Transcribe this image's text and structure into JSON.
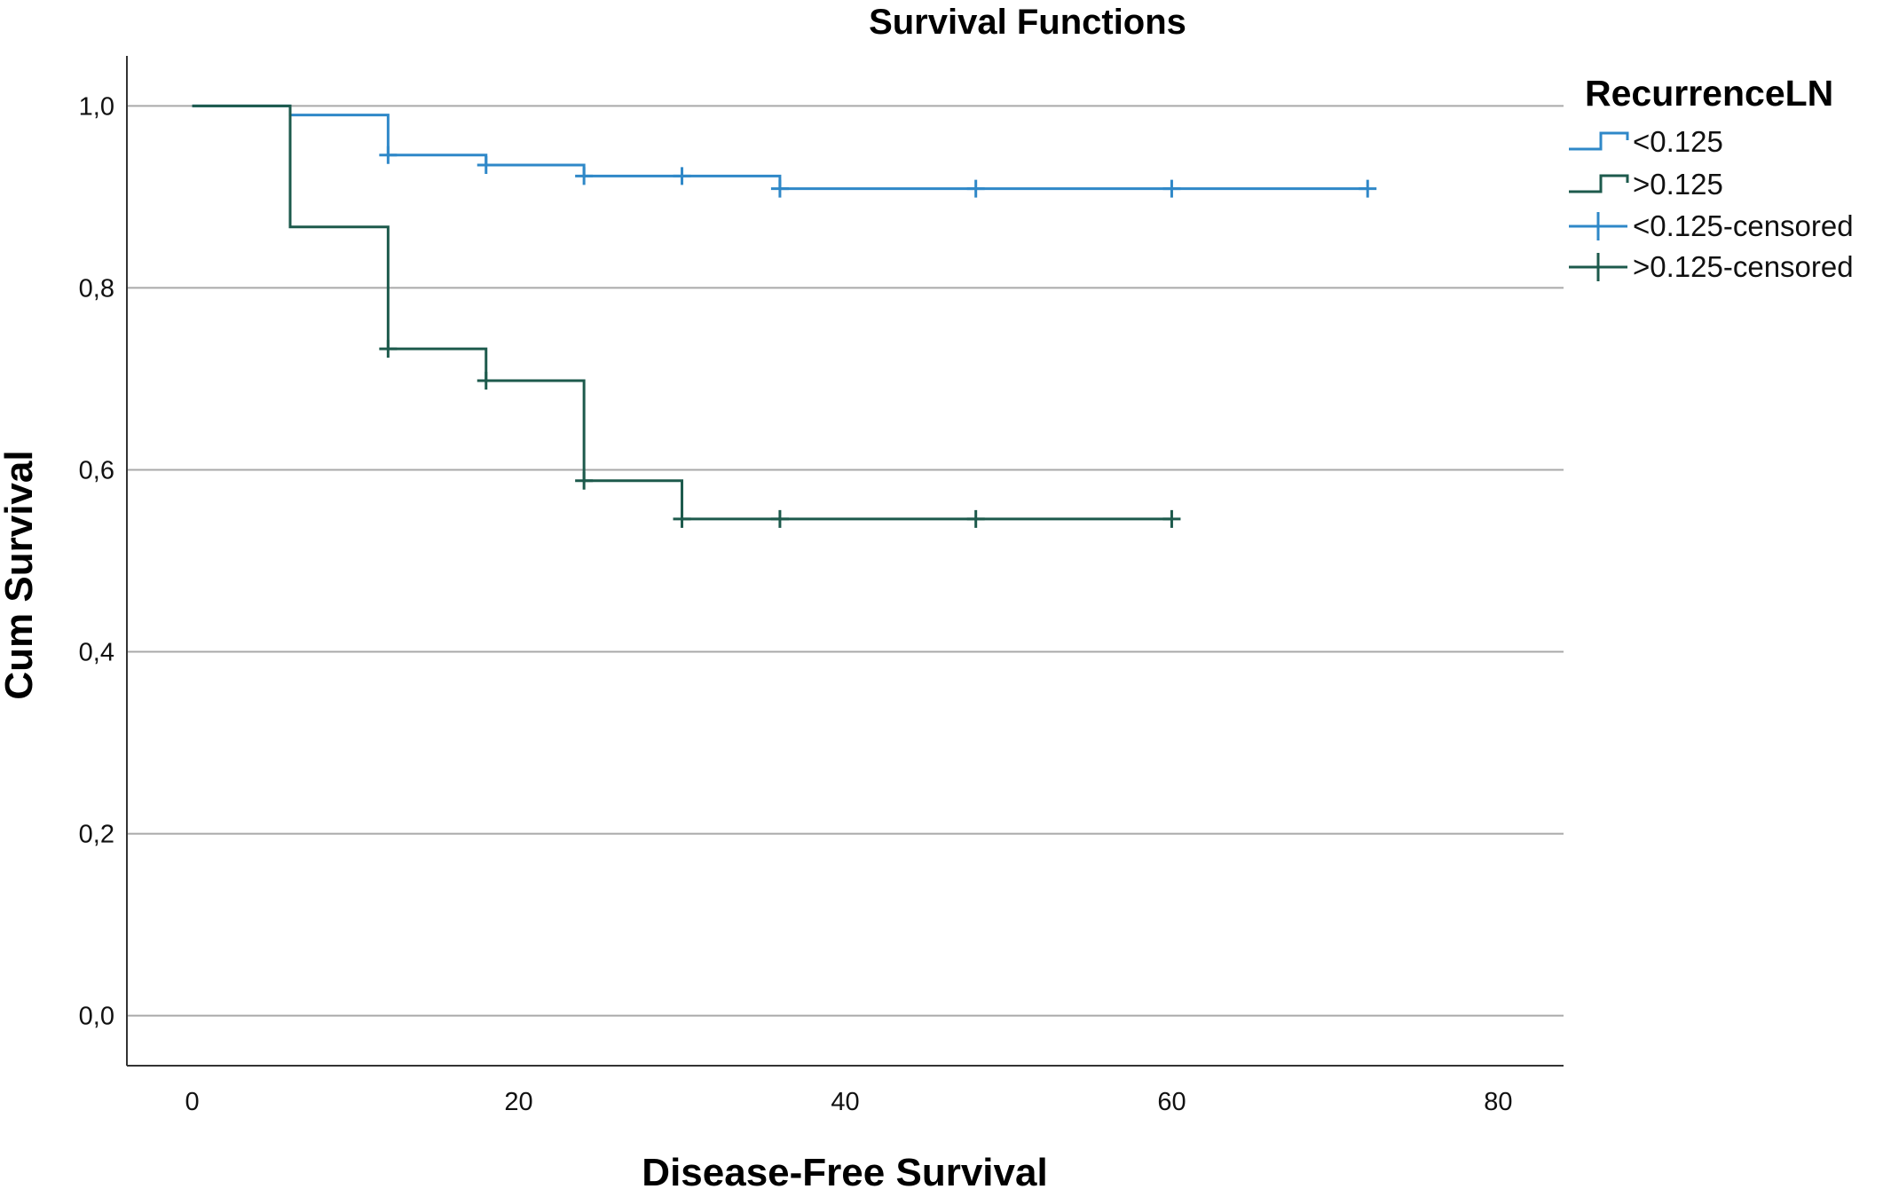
{
  "chart_data": {
    "type": "line",
    "subtype": "kaplan-meier-step",
    "title": "Survival Functions",
    "xlabel": "Disease-Free Survival",
    "ylabel": "Cum Survival",
    "xlim": [
      -4,
      84
    ],
    "ylim": [
      -0.055,
      1.055
    ],
    "xticks": [
      0,
      20,
      40,
      60,
      80
    ],
    "xtick_labels": [
      "0",
      "20",
      "40",
      "60",
      "80"
    ],
    "yticks": [
      0,
      0.2,
      0.4,
      0.6,
      0.8,
      1.0
    ],
    "ytick_labels": [
      "0,0",
      "0,2",
      "0,4",
      "0,6",
      "0,8",
      "1,0"
    ],
    "grid": "horizontal",
    "legend": {
      "title": "RecurrenceLN",
      "placement": "top-right",
      "entries": [
        "<0.125",
        ">0.125",
        "<0.125-censored",
        ">0.125-censored"
      ]
    },
    "series": [
      {
        "name": "<0.125",
        "color": "#2f88c8",
        "steps": [
          [
            0,
            1.0
          ],
          [
            6,
            0.99
          ],
          [
            12,
            0.946
          ],
          [
            18,
            0.935
          ],
          [
            24,
            0.923
          ],
          [
            36,
            0.909
          ],
          [
            72,
            0.909
          ]
        ],
        "censored": [
          [
            12,
            0.946
          ],
          [
            18,
            0.935
          ],
          [
            24,
            0.923
          ],
          [
            30,
            0.923
          ],
          [
            36,
            0.909
          ],
          [
            48,
            0.909
          ],
          [
            60,
            0.909
          ],
          [
            72,
            0.909
          ]
        ]
      },
      {
        "name": ">0.125",
        "color": "#1d5a4c",
        "steps": [
          [
            0,
            1.0
          ],
          [
            6,
            0.867
          ],
          [
            12,
            0.733
          ],
          [
            18,
            0.698
          ],
          [
            24,
            0.588
          ],
          [
            30,
            0.546
          ],
          [
            60,
            0.546
          ]
        ],
        "censored": [
          [
            12,
            0.733
          ],
          [
            18,
            0.698
          ],
          [
            24,
            0.588
          ],
          [
            30,
            0.546
          ],
          [
            36,
            0.546
          ],
          [
            48,
            0.546
          ],
          [
            60,
            0.546
          ]
        ]
      }
    ]
  }
}
